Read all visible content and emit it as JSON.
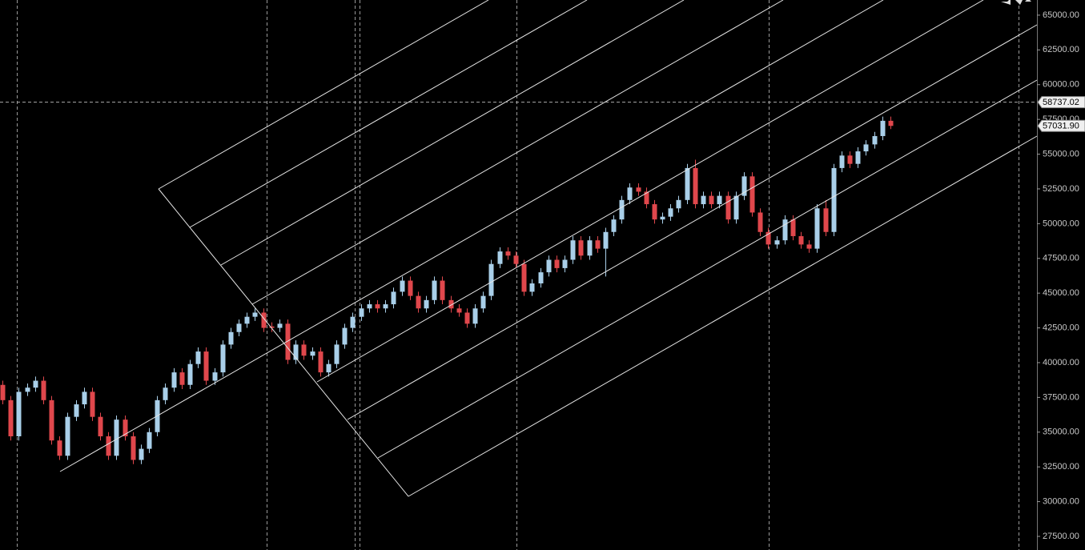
{
  "chart_data": {
    "type": "candlestick",
    "up_color": "#a9cfe9",
    "down_color": "#e0474c",
    "ylim": [
      26520,
      66090
    ],
    "yticks": [
      {
        "value": 27500,
        "label": "27500.00"
      },
      {
        "value": 30000,
        "label": "30000.00"
      },
      {
        "value": 32500,
        "label": "32500.00"
      },
      {
        "value": 35000,
        "label": "35000.00"
      },
      {
        "value": 37500,
        "label": "37500.00"
      },
      {
        "value": 40000,
        "label": "40000.00"
      },
      {
        "value": 42500,
        "label": "42500.00"
      },
      {
        "value": 45000,
        "label": "45000.00"
      },
      {
        "value": 47500,
        "label": "47500.00"
      },
      {
        "value": 50000,
        "label": "50000.00"
      },
      {
        "value": 52500,
        "label": "52500.00"
      },
      {
        "value": 55000,
        "label": "55000.00"
      },
      {
        "value": 57500,
        "label": "57500.00"
      },
      {
        "value": 60000,
        "label": "60000.00"
      },
      {
        "value": 62500,
        "label": "62500.00"
      },
      {
        "value": 65000,
        "label": "65000.00"
      }
    ],
    "crosshair": {
      "value": 58737.02,
      "label": "58737.02"
    },
    "last_price": {
      "value": 57031.9,
      "label": "57031.90"
    },
    "candles": [
      [
        38400,
        38700,
        37000,
        37300
      ],
      [
        37300,
        37600,
        34400,
        34700
      ],
      [
        34700,
        38200,
        34400,
        37900
      ],
      [
        37900,
        38500,
        37600,
        38200
      ],
      [
        38200,
        39000,
        37900,
        38700
      ],
      [
        38700,
        39000,
        37000,
        37300
      ],
      [
        37300,
        37600,
        34100,
        34400
      ],
      [
        34400,
        34700,
        33000,
        33300
      ],
      [
        33300,
        36400,
        33000,
        36100
      ],
      [
        36100,
        37300,
        35800,
        37000
      ],
      [
        37000,
        38200,
        36700,
        37900
      ],
      [
        37900,
        38200,
        35800,
        36100
      ],
      [
        36100,
        36400,
        34400,
        34700
      ],
      [
        34700,
        35000,
        33000,
        33300
      ],
      [
        33300,
        36200,
        33000,
        35900
      ],
      [
        35900,
        36200,
        34400,
        34700
      ],
      [
        34700,
        35000,
        32700,
        33000
      ],
      [
        33000,
        34100,
        32700,
        33800
      ],
      [
        33800,
        35300,
        33500,
        35000
      ],
      [
        35000,
        37600,
        34700,
        37300
      ],
      [
        37300,
        38500,
        37000,
        38200
      ],
      [
        38200,
        39600,
        37900,
        39300
      ],
      [
        39300,
        39600,
        38100,
        38400
      ],
      [
        38400,
        40200,
        38100,
        39900
      ],
      [
        39900,
        41100,
        39600,
        40800
      ],
      [
        40800,
        41100,
        38400,
        38700
      ],
      [
        38700,
        39600,
        38400,
        39300
      ],
      [
        39300,
        41600,
        39000,
        41300
      ],
      [
        41300,
        42500,
        41000,
        42200
      ],
      [
        42200,
        43100,
        41900,
        42800
      ],
      [
        42800,
        43600,
        42500,
        43300
      ],
      [
        43300,
        43900,
        43000,
        43600
      ],
      [
        43600,
        43900,
        42200,
        42500
      ],
      [
        42600,
        42900,
        42200,
        42500
      ],
      [
        42500,
        43100,
        42200,
        42800
      ],
      [
        42800,
        43100,
        39900,
        40200
      ],
      [
        40200,
        41600,
        39900,
        41300
      ],
      [
        41300,
        41600,
        40200,
        40500
      ],
      [
        40500,
        41100,
        40200,
        40800
      ],
      [
        40800,
        41100,
        39000,
        39300
      ],
      [
        39300,
        40200,
        39000,
        39900
      ],
      [
        39900,
        41600,
        39600,
        41300
      ],
      [
        41300,
        42800,
        41000,
        42500
      ],
      [
        42500,
        43600,
        42200,
        43300
      ],
      [
        43300,
        44200,
        43000,
        43900
      ],
      [
        43900,
        44500,
        43600,
        44200
      ],
      [
        44200,
        44500,
        43600,
        43900
      ],
      [
        43900,
        44500,
        43600,
        44200
      ],
      [
        44200,
        45400,
        43900,
        45100
      ],
      [
        45100,
        46200,
        44800,
        45900
      ],
      [
        45900,
        46200,
        44500,
        44800
      ],
      [
        44800,
        45100,
        43600,
        43900
      ],
      [
        43900,
        44800,
        43600,
        44500
      ],
      [
        44500,
        46200,
        44200,
        45900
      ],
      [
        45900,
        46200,
        44200,
        44500
      ],
      [
        44500,
        44800,
        43600,
        43900
      ],
      [
        43900,
        44200,
        43300,
        43600
      ],
      [
        43600,
        43900,
        42500,
        42800
      ],
      [
        42800,
        44200,
        42500,
        43900
      ],
      [
        43900,
        45100,
        43600,
        44800
      ],
      [
        44800,
        47400,
        44500,
        47100
      ],
      [
        47100,
        48300,
        46800,
        48000
      ],
      [
        48000,
        48300,
        47400,
        47700
      ],
      [
        47700,
        48000,
        46800,
        47100
      ],
      [
        47100,
        47400,
        44800,
        45100
      ],
      [
        45100,
        46000,
        44800,
        45700
      ],
      [
        45700,
        46800,
        45400,
        46500
      ],
      [
        46500,
        47700,
        46200,
        47400
      ],
      [
        47400,
        47700,
        46500,
        46800
      ],
      [
        46800,
        47700,
        46500,
        47400
      ],
      [
        47400,
        49100,
        47100,
        48800
      ],
      [
        48800,
        49100,
        47400,
        47700
      ],
      [
        47700,
        49100,
        47400,
        48800
      ],
      [
        48800,
        49100,
        47900,
        48200
      ],
      [
        48200,
        49700,
        46200,
        49400
      ],
      [
        49400,
        50600,
        49100,
        50300
      ],
      [
        50300,
        52000,
        50000,
        51700
      ],
      [
        51700,
        52900,
        51400,
        52600
      ],
      [
        52600,
        52900,
        52000,
        52300
      ],
      [
        52300,
        52600,
        51100,
        51400
      ],
      [
        51400,
        51700,
        50000,
        50300
      ],
      [
        50300,
        50800,
        50000,
        50500
      ],
      [
        50500,
        51400,
        50200,
        51100
      ],
      [
        51100,
        52000,
        50800,
        51700
      ],
      [
        51700,
        54300,
        51400,
        54000
      ],
      [
        54000,
        54600,
        51100,
        51400
      ],
      [
        51400,
        52300,
        51100,
        52000
      ],
      [
        52000,
        52300,
        51100,
        51400
      ],
      [
        51400,
        52300,
        51100,
        52000
      ],
      [
        52000,
        52300,
        50000,
        50300
      ],
      [
        50300,
        52300,
        50000,
        52000
      ],
      [
        52000,
        53700,
        51700,
        53400
      ],
      [
        53400,
        53700,
        50500,
        50800
      ],
      [
        50800,
        51100,
        49100,
        49400
      ],
      [
        49400,
        49700,
        48200,
        48500
      ],
      [
        48500,
        49100,
        48200,
        48800
      ],
      [
        48800,
        50600,
        48500,
        50300
      ],
      [
        50300,
        50600,
        48800,
        49100
      ],
      [
        49100,
        49400,
        48200,
        48500
      ],
      [
        48500,
        48800,
        47900,
        48200
      ],
      [
        48200,
        51400,
        47900,
        51100
      ],
      [
        51100,
        51700,
        49100,
        49400
      ],
      [
        49400,
        54300,
        49100,
        54000
      ],
      [
        54000,
        55200,
        53700,
        54900
      ],
      [
        54900,
        55200,
        54000,
        54300
      ],
      [
        54300,
        55500,
        54000,
        55200
      ],
      [
        55200,
        56000,
        54900,
        55700
      ],
      [
        55700,
        56600,
        55400,
        56300
      ],
      [
        56300,
        57700,
        56000,
        57400
      ],
      [
        57400,
        57700,
        56800,
        57031.9
      ]
    ]
  }
}
